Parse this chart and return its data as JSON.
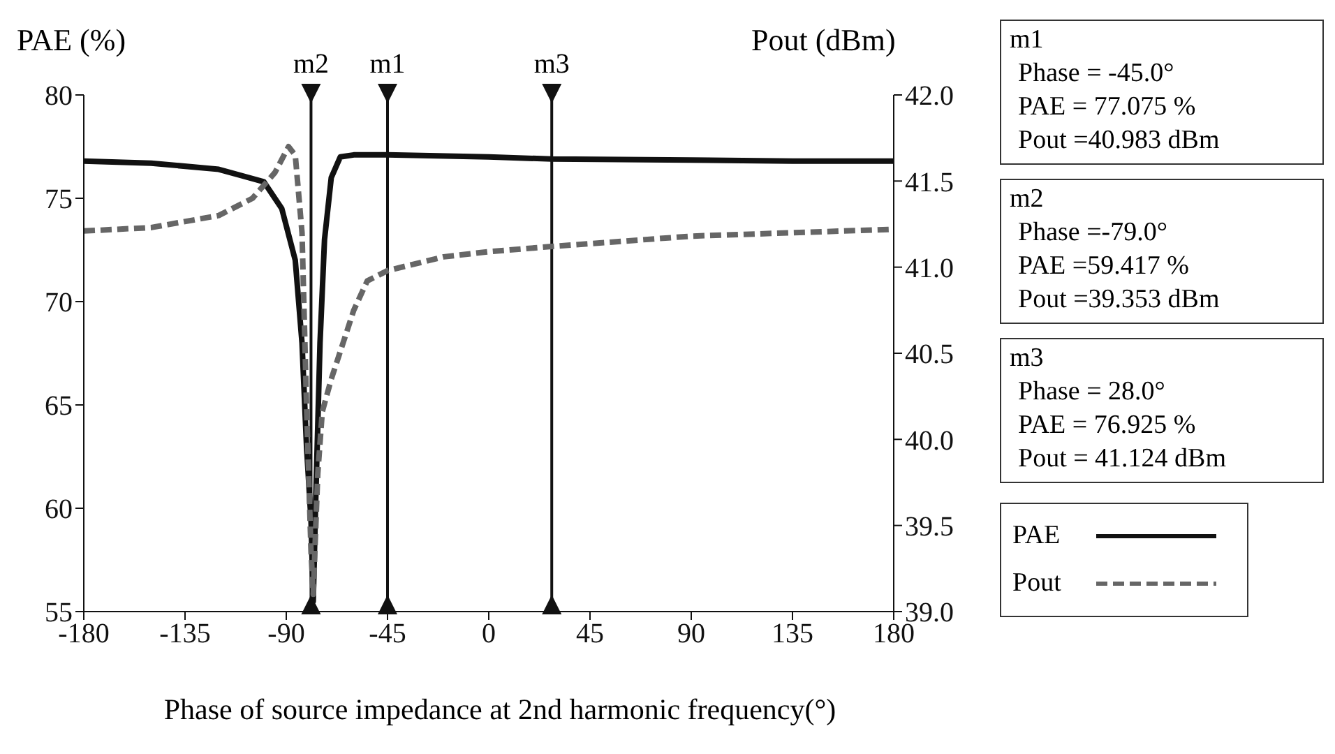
{
  "chart_data": {
    "type": "line",
    "xlabel": "Phase of source impedance at 2nd harmonic frequency(°)",
    "ylabel": "PAE (%)",
    "y2label": "Pout (dBm)",
    "xlim": [
      -180,
      180
    ],
    "xticks": [
      -180,
      -135,
      -90,
      -45,
      0,
      45,
      90,
      135,
      180
    ],
    "ylim": [
      55,
      80
    ],
    "yticks": [
      55,
      60,
      65,
      70,
      75,
      80
    ],
    "y2lim": [
      39,
      42
    ],
    "y2ticks": [
      {
        "value": 39,
        "label": "39.0"
      },
      {
        "value": 39.5,
        "label": "39.5"
      },
      {
        "value": 40,
        "label": "40.0"
      },
      {
        "value": 40.5,
        "label": "40.5"
      },
      {
        "value": 41,
        "label": "41.0"
      },
      {
        "value": 41.5,
        "label": "41.5"
      },
      {
        "value": 42,
        "label": "42.0"
      }
    ],
    "legend": "bottom right",
    "marker": "none",
    "series": [
      {
        "name": "PAE",
        "color": "#111111",
        "line_style": "solid",
        "x": [
          -180,
          -150,
          -120,
          -100,
          -92,
          -86,
          -83,
          -81,
          -79,
          -78,
          -77,
          -75,
          -73,
          -70,
          -66,
          -60,
          -45,
          0,
          28,
          90,
          135,
          180
        ],
        "values": [
          76.8,
          76.7,
          76.4,
          75.8,
          74.5,
          72,
          68,
          63,
          59.4,
          55.5,
          60,
          68,
          73,
          76,
          77,
          77.1,
          77.1,
          77,
          76.9,
          76.85,
          76.8,
          76.8
        ]
      },
      {
        "name": "Pout",
        "color": "#666666",
        "line_style": "dashed",
        "axis": "y2",
        "x": [
          -180,
          -150,
          -120,
          -105,
          -95,
          -89,
          -86,
          -83,
          -81,
          -79,
          -78,
          -76,
          -74,
          -70,
          -66,
          -60,
          -54,
          -45,
          -20,
          0,
          28,
          90,
          180
        ],
        "values": [
          41.21,
          41.23,
          41.3,
          41.4,
          41.55,
          41.7,
          41.65,
          41.2,
          40.2,
          39.35,
          39.1,
          39.8,
          40.16,
          40.35,
          40.51,
          40.75,
          40.92,
          40.98,
          41.06,
          41.09,
          41.12,
          41.18,
          41.22
        ]
      }
    ],
    "ref_lines": [
      {
        "axis": "x",
        "value": -79,
        "label": "m2",
        "color": "#111111"
      },
      {
        "axis": "x",
        "value": -45,
        "label": "m1",
        "color": "#111111"
      },
      {
        "axis": "x",
        "value": 28,
        "label": "m3",
        "color": "#111111"
      }
    ],
    "annotations": [
      "m1",
      "Phase = -45.0°",
      "PAE = 77.075 %",
      "Pout =40.983 dBm",
      "m2",
      "Phase =-79.0°",
      "PAE =59.417 %",
      "Pout =39.353 dBm",
      "m3",
      "Phase = 28.0°",
      "PAE = 76.925 %",
      "Pout = 41.124 dBm"
    ]
  }
}
